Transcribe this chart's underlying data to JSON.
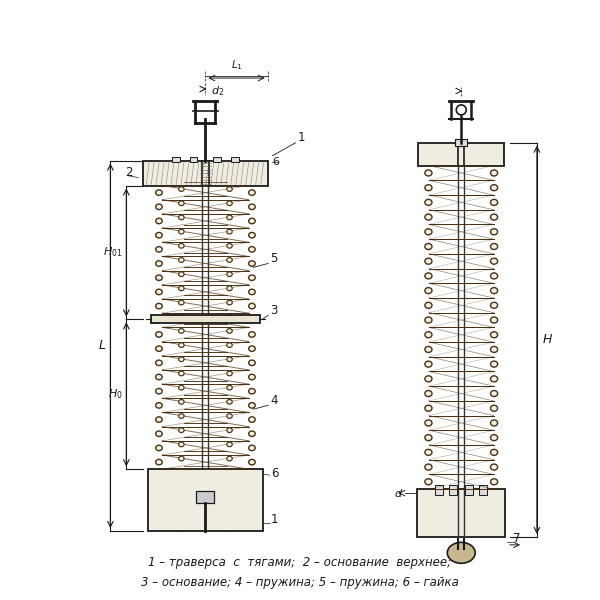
{
  "bg_color": "#ffffff",
  "line_color": "#1a1a1a",
  "spring_color": "#8B7355",
  "dim_color": "#1a1a1a",
  "caption_line1": "1 – траверса  с  тягами;  2 – основание  верхнее;",
  "caption_line2": "3 – основание; 4 – пружина; 5 – пружина; 6 – гайка",
  "figsize": [
    6.0,
    6.0
  ],
  "dpi": 100
}
